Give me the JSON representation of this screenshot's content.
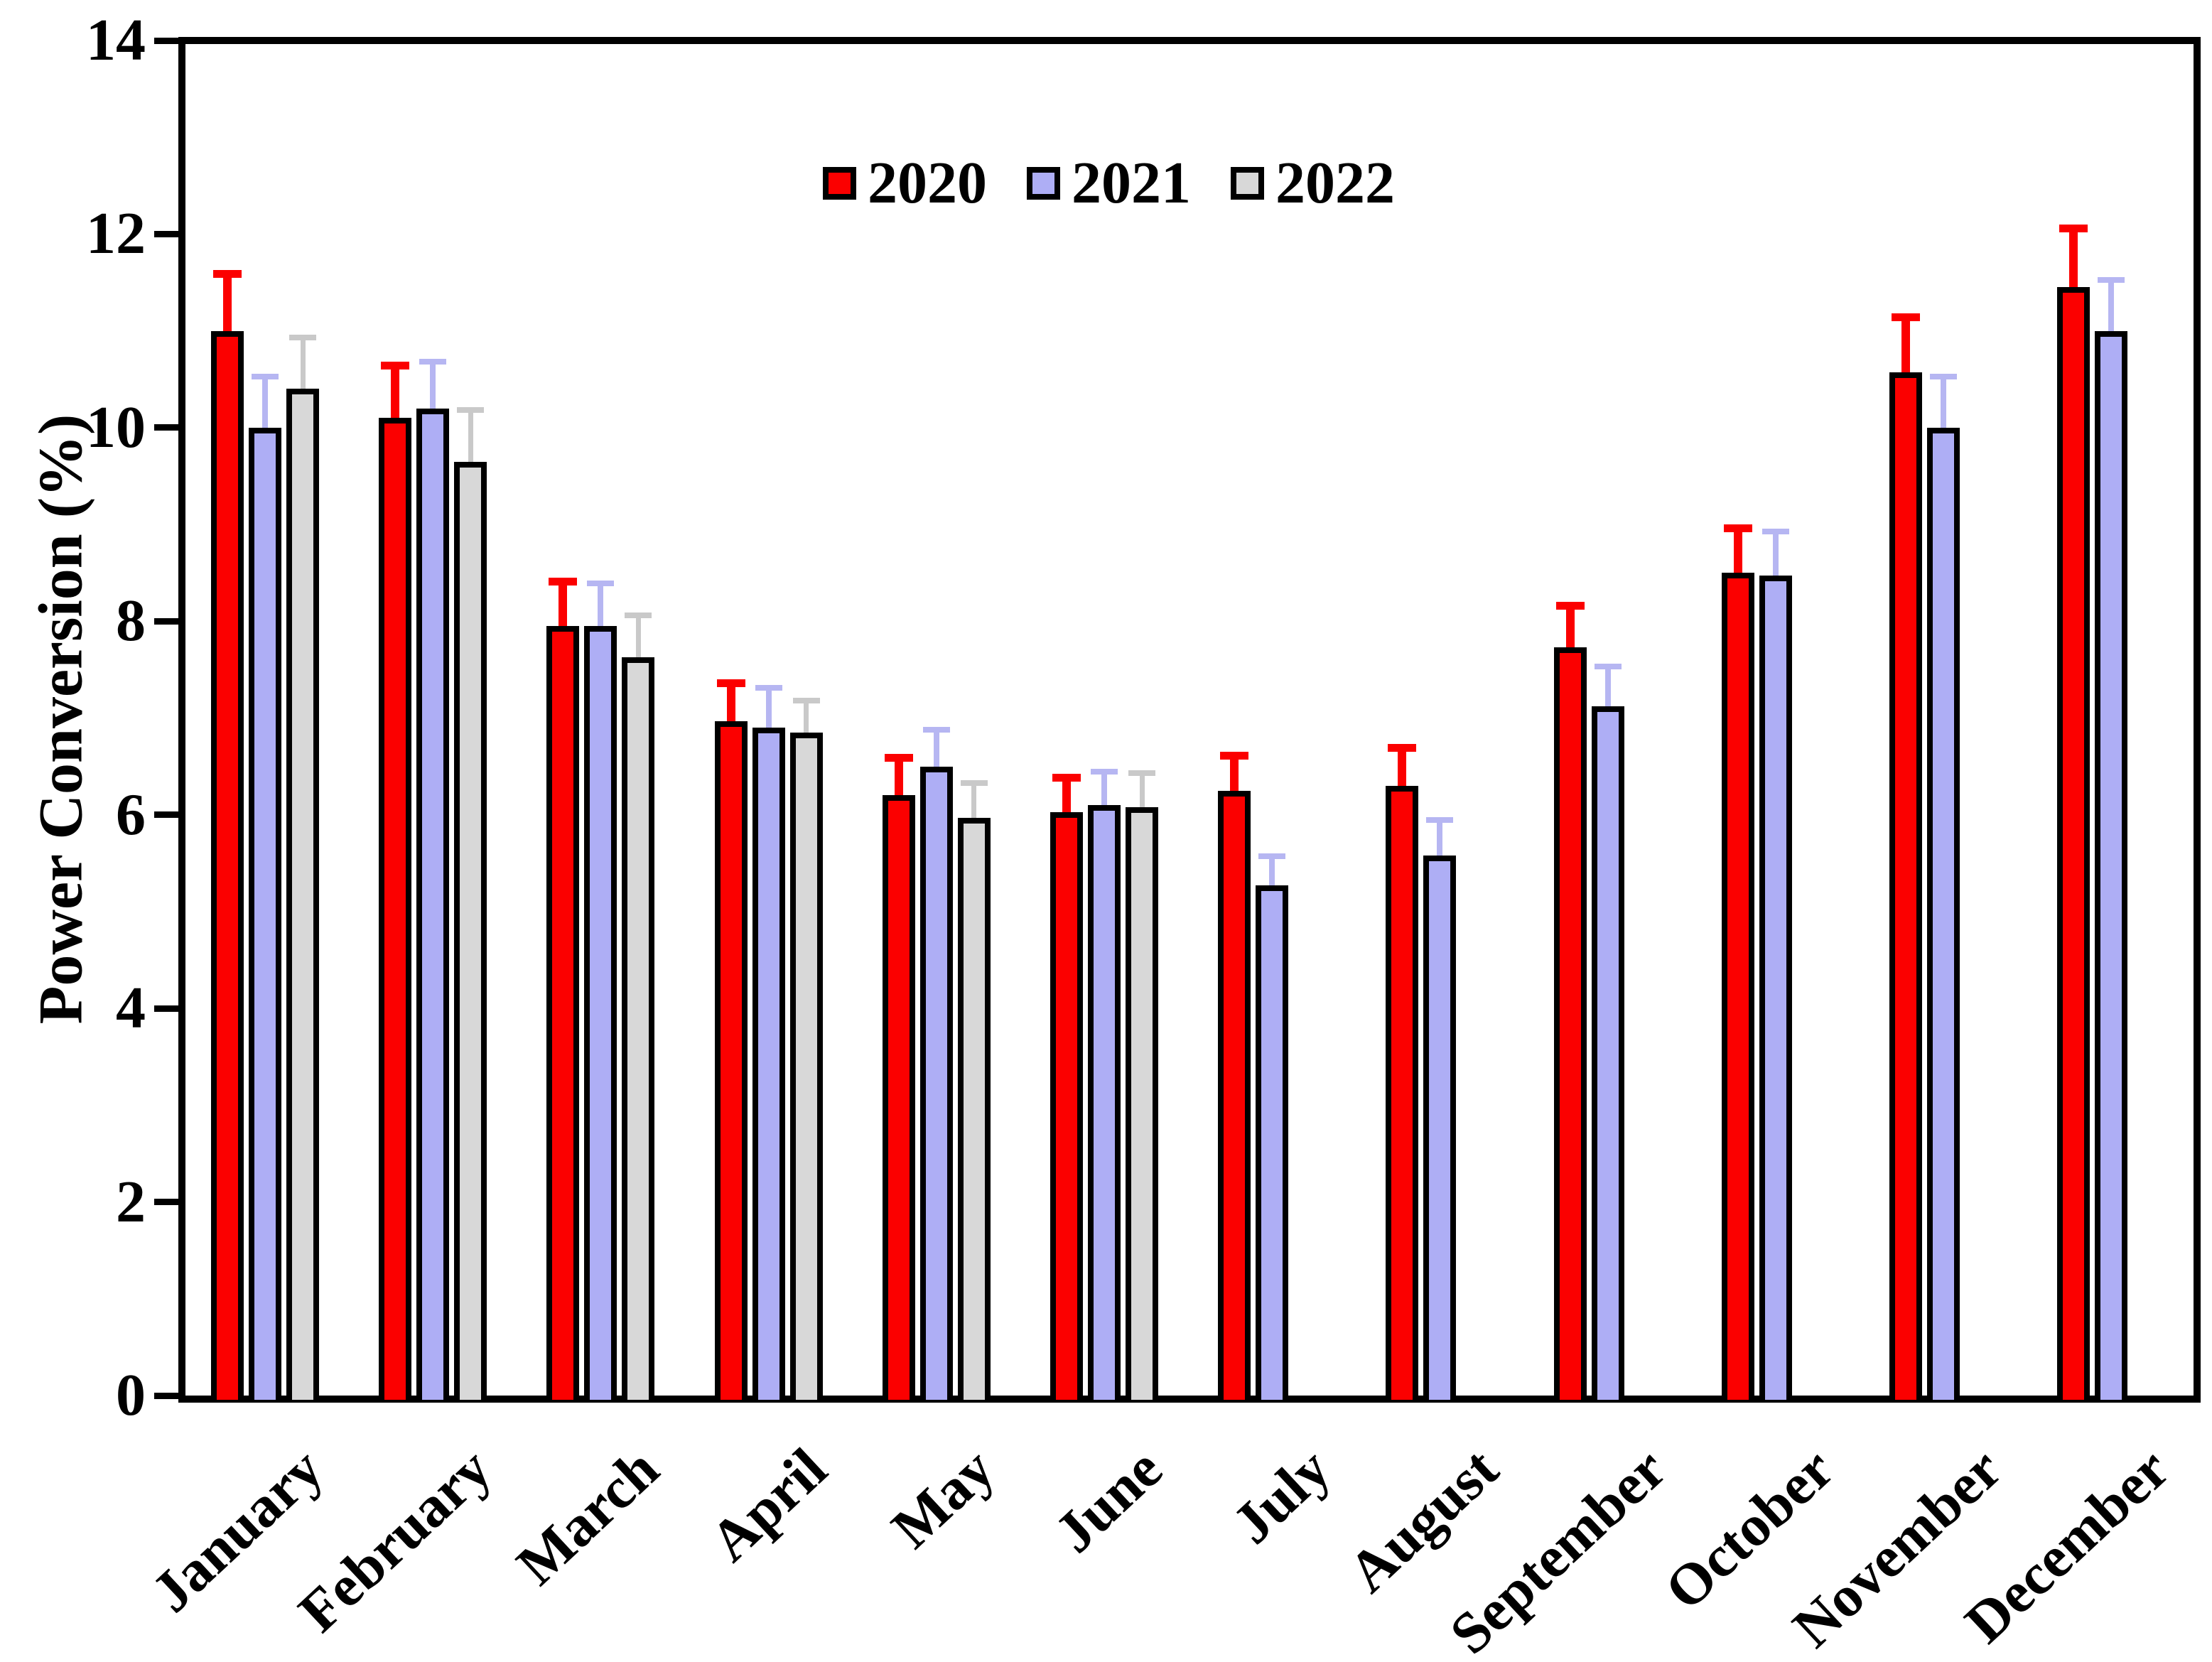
{
  "chart_data": {
    "type": "bar",
    "title": "",
    "xlabel": "",
    "ylabel": "Power Conversion (%)",
    "ylim": [
      0,
      14
    ],
    "yticks": [
      0,
      2,
      4,
      6,
      8,
      10,
      12,
      14
    ],
    "grid": false,
    "legend_position": "top-center",
    "categories": [
      "January",
      "February",
      "March",
      "April",
      "May",
      "June",
      "July",
      "August",
      "September",
      "October",
      "November",
      "December"
    ],
    "series": [
      {
        "name": "2020",
        "color": "#fb0000",
        "error_color": "#fb0000",
        "values": [
          11.0,
          10.1,
          7.95,
          6.97,
          6.2,
          6.03,
          6.25,
          6.3,
          7.73,
          8.5,
          10.57,
          11.45
        ],
        "errors": [
          0.55,
          0.5,
          0.42,
          0.35,
          0.35,
          0.31,
          0.32,
          0.35,
          0.39,
          0.42,
          0.53,
          0.57
        ]
      },
      {
        "name": "2021",
        "color": "#aeaef5",
        "error_color": "#b6b6f2",
        "values": [
          10.0,
          10.2,
          7.95,
          6.9,
          6.5,
          6.1,
          5.27,
          5.58,
          7.12,
          8.47,
          10.0,
          11.0
        ],
        "errors": [
          0.5,
          0.45,
          0.41,
          0.38,
          0.35,
          0.32,
          0.27,
          0.34,
          0.38,
          0.43,
          0.5,
          0.5
        ]
      },
      {
        "name": "2022",
        "color": "#d8d8d8",
        "error_color": "#c9c9c9",
        "values": [
          10.4,
          9.65,
          7.63,
          6.85,
          5.97,
          6.08,
          null,
          null,
          null,
          null,
          null,
          null
        ],
        "errors": [
          0.5,
          0.5,
          0.4,
          0.3,
          0.33,
          0.32,
          null,
          null,
          null,
          null,
          null,
          null
        ]
      }
    ],
    "axis_color": "#000000",
    "background_color": "#ffffff"
  }
}
